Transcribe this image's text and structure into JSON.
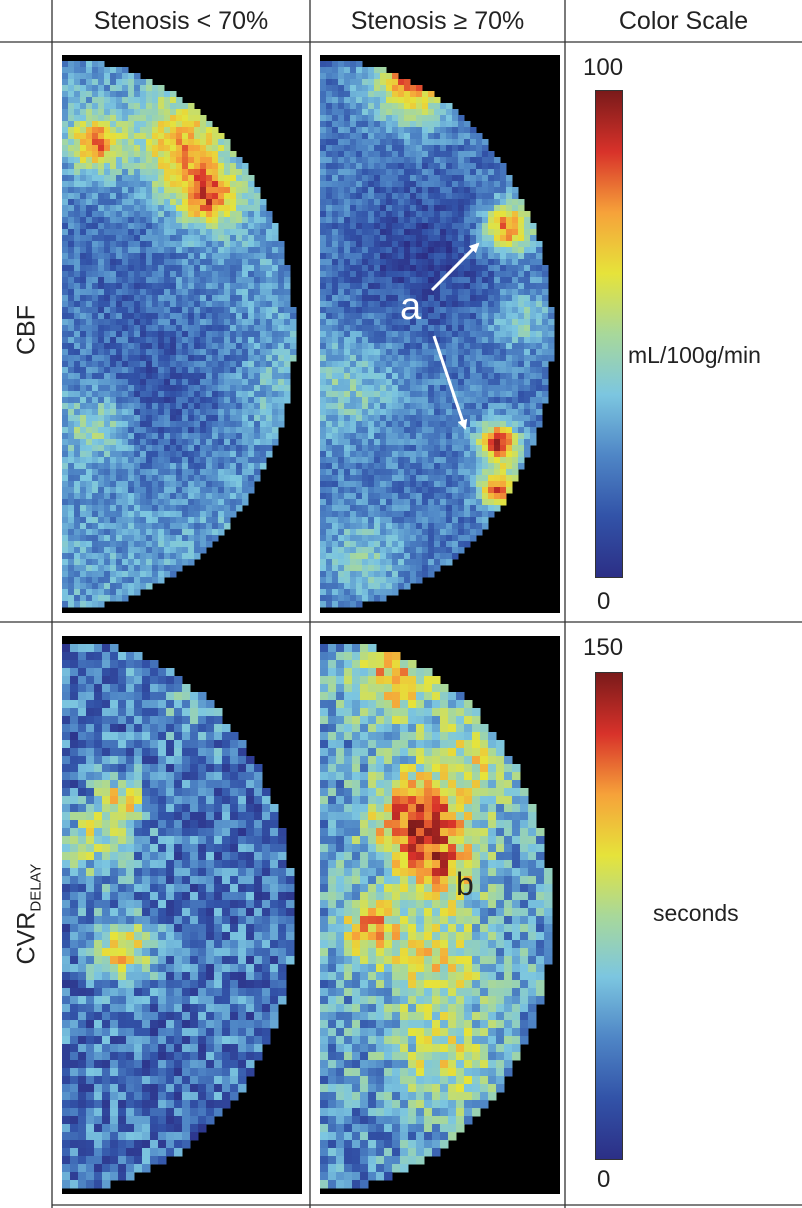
{
  "columns": {
    "low": "Stenosis < 70%",
    "high": "Stenosis ≥ 70%",
    "scale": "Color Scale"
  },
  "rows": {
    "cbf": {
      "label": "CBF"
    },
    "cvr": {
      "label_main": "CVR",
      "label_sub": "DELAY"
    }
  },
  "scales": {
    "cbf": {
      "max": "100",
      "min": "0",
      "unit": "mL/100g/min"
    },
    "cvr": {
      "max": "150",
      "min": "0",
      "unit": "seconds"
    }
  },
  "annotations": {
    "a": "a",
    "b": "b"
  },
  "colors": {
    "colormap": [
      "#2c2f86",
      "#3253a8",
      "#4f86c6",
      "#7cc6e0",
      "#a8d89a",
      "#e6e33a",
      "#f6a23a",
      "#d8322a",
      "#7a1a1a"
    ],
    "background": "#000000",
    "arrow": "#ffffff"
  }
}
